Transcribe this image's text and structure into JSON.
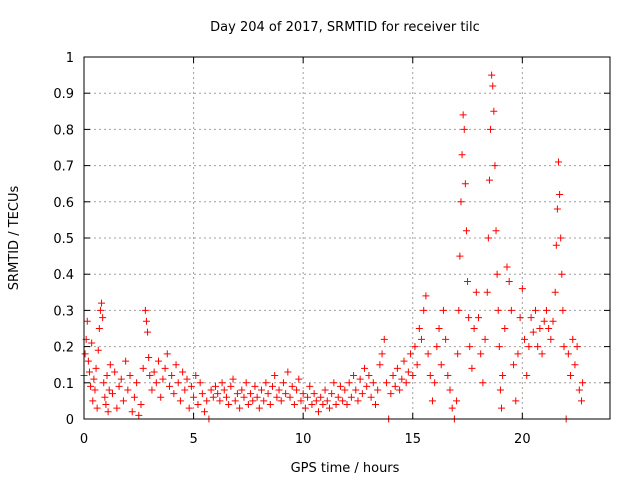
{
  "chart_data": {
    "type": "scatter",
    "title": "Day 204 of 2017, SRMTID for receiver tilc",
    "xlabel": "GPS time / hours",
    "ylabel": "SRMTID / TECUs",
    "xlim": [
      0,
      24
    ],
    "ylim": [
      0,
      1
    ],
    "x_ticks": [
      0,
      5,
      10,
      15,
      20
    ],
    "y_ticks": [
      0,
      0.1,
      0.2,
      0.3,
      0.4,
      0.5,
      0.6,
      0.7,
      0.8,
      0.9,
      1
    ],
    "grid": true,
    "marker": "+",
    "color": "#ff0000",
    "series": [
      {
        "name": "SRMTID",
        "points": [
          [
            0.0,
            0.12
          ],
          [
            0.05,
            0.18
          ],
          [
            0.1,
            0.22
          ],
          [
            0.15,
            0.27
          ],
          [
            0.2,
            0.16
          ],
          [
            0.25,
            0.13
          ],
          [
            0.3,
            0.09
          ],
          [
            0.35,
            0.21
          ],
          [
            0.4,
            0.05
          ],
          [
            0.45,
            0.11
          ],
          [
            0.5,
            0.08
          ],
          [
            0.55,
            0.14
          ],
          [
            0.6,
            0.03
          ],
          [
            0.65,
            0.19
          ],
          [
            0.7,
            0.25
          ],
          [
            0.75,
            0.3
          ],
          [
            0.8,
            0.32
          ],
          [
            0.85,
            0.28
          ],
          [
            0.9,
            0.1
          ],
          [
            0.95,
            0.06
          ],
          [
            1.0,
            0.04
          ],
          [
            1.05,
            0.12
          ],
          [
            1.1,
            0.02
          ],
          [
            1.15,
            0.08
          ],
          [
            1.2,
            0.15
          ],
          [
            1.3,
            0.07
          ],
          [
            1.4,
            0.13
          ],
          [
            1.5,
            0.03
          ],
          [
            1.6,
            0.09
          ],
          [
            1.7,
            0.11
          ],
          [
            1.8,
            0.05
          ],
          [
            1.9,
            0.16
          ],
          [
            2.0,
            0.08
          ],
          [
            2.1,
            0.12
          ],
          [
            2.2,
            0.02
          ],
          [
            2.3,
            0.06
          ],
          [
            2.4,
            0.1
          ],
          [
            2.5,
            0.01
          ],
          [
            2.6,
            0.04
          ],
          [
            2.7,
            0.14
          ],
          [
            2.8,
            0.3
          ],
          [
            2.85,
            0.27
          ],
          [
            2.9,
            0.24
          ],
          [
            2.95,
            0.17
          ],
          [
            3.0,
            0.12
          ],
          [
            3.1,
            0.08
          ],
          [
            3.2,
            0.13
          ],
          [
            3.3,
            0.1
          ],
          [
            3.4,
            0.16
          ],
          [
            3.5,
            0.06
          ],
          [
            3.6,
            0.11
          ],
          [
            3.7,
            0.14
          ],
          [
            3.8,
            0.18
          ],
          [
            3.9,
            0.09
          ],
          [
            4.0,
            0.12
          ],
          [
            4.1,
            0.07
          ],
          [
            4.2,
            0.15
          ],
          [
            4.3,
            0.1
          ],
          [
            4.4,
            0.05
          ],
          [
            4.5,
            0.13
          ],
          [
            4.6,
            0.08
          ],
          [
            4.7,
            0.11
          ],
          [
            4.8,
            0.03
          ],
          [
            4.9,
            0.09
          ],
          [
            5.0,
            0.06
          ],
          [
            5.1,
            0.12
          ],
          [
            5.2,
            0.04
          ],
          [
            5.3,
            0.1
          ],
          [
            5.4,
            0.07
          ],
          [
            5.5,
            0.02
          ],
          [
            5.6,
            0.05
          ],
          [
            5.7,
            0.0
          ],
          [
            5.8,
            0.08
          ],
          [
            5.9,
            0.06
          ],
          [
            6.0,
            0.09
          ],
          [
            6.1,
            0.07
          ],
          [
            6.2,
            0.05
          ],
          [
            6.3,
            0.1
          ],
          [
            6.4,
            0.08
          ],
          [
            6.5,
            0.06
          ],
          [
            6.6,
            0.04
          ],
          [
            6.7,
            0.09
          ],
          [
            6.8,
            0.11
          ],
          [
            6.9,
            0.05
          ],
          [
            7.0,
            0.07
          ],
          [
            7.1,
            0.03
          ],
          [
            7.2,
            0.08
          ],
          [
            7.3,
            0.06
          ],
          [
            7.4,
            0.1
          ],
          [
            7.5,
            0.04
          ],
          [
            7.6,
            0.07
          ],
          [
            7.7,
            0.05
          ],
          [
            7.8,
            0.09
          ],
          [
            7.9,
            0.06
          ],
          [
            8.0,
            0.03
          ],
          [
            8.1,
            0.08
          ],
          [
            8.2,
            0.05
          ],
          [
            8.3,
            0.1
          ],
          [
            8.4,
            0.07
          ],
          [
            8.5,
            0.04
          ],
          [
            8.6,
            0.09
          ],
          [
            8.7,
            0.12
          ],
          [
            8.8,
            0.06
          ],
          [
            8.9,
            0.08
          ],
          [
            9.0,
            0.05
          ],
          [
            9.1,
            0.1
          ],
          [
            9.2,
            0.07
          ],
          [
            9.3,
            0.13
          ],
          [
            9.4,
            0.06
          ],
          [
            9.5,
            0.09
          ],
          [
            9.6,
            0.04
          ],
          [
            9.7,
            0.08
          ],
          [
            9.8,
            0.11
          ],
          [
            9.9,
            0.05
          ],
          [
            10.0,
            0.07
          ],
          [
            10.1,
            0.03
          ],
          [
            10.2,
            0.06
          ],
          [
            10.3,
            0.09
          ],
          [
            10.4,
            0.04
          ],
          [
            10.5,
            0.07
          ],
          [
            10.6,
            0.05
          ],
          [
            10.7,
            0.02
          ],
          [
            10.8,
            0.06
          ],
          [
            10.9,
            0.04
          ],
          [
            11.0,
            0.08
          ],
          [
            11.1,
            0.05
          ],
          [
            11.2,
            0.03
          ],
          [
            11.3,
            0.07
          ],
          [
            11.4,
            0.1
          ],
          [
            11.5,
            0.04
          ],
          [
            11.6,
            0.06
          ],
          [
            11.7,
            0.09
          ],
          [
            11.8,
            0.05
          ],
          [
            11.9,
            0.08
          ],
          [
            12.0,
            0.04
          ],
          [
            12.1,
            0.1
          ],
          [
            12.2,
            0.06
          ],
          [
            12.3,
            0.12
          ],
          [
            12.4,
            0.08
          ],
          [
            12.5,
            0.05
          ],
          [
            12.6,
            0.11
          ],
          [
            12.7,
            0.07
          ],
          [
            12.8,
            0.14
          ],
          [
            12.9,
            0.09
          ],
          [
            13.0,
            0.12
          ],
          [
            13.1,
            0.06
          ],
          [
            13.2,
            0.1
          ],
          [
            13.3,
            0.04
          ],
          [
            13.4,
            0.08
          ],
          [
            13.5,
            0.15
          ],
          [
            13.6,
            0.18
          ],
          [
            13.7,
            0.22
          ],
          [
            13.8,
            0.1
          ],
          [
            13.9,
            0.0
          ],
          [
            14.0,
            0.07
          ],
          [
            14.1,
            0.12
          ],
          [
            14.2,
            0.09
          ],
          [
            14.3,
            0.14
          ],
          [
            14.4,
            0.08
          ],
          [
            14.5,
            0.11
          ],
          [
            14.6,
            0.16
          ],
          [
            14.7,
            0.1
          ],
          [
            14.8,
            0.13
          ],
          [
            14.9,
            0.18
          ],
          [
            15.0,
            0.12
          ],
          [
            15.1,
            0.2
          ],
          [
            15.2,
            0.15
          ],
          [
            15.3,
            0.25
          ],
          [
            15.4,
            0.22
          ],
          [
            15.5,
            0.3
          ],
          [
            15.6,
            0.34
          ],
          [
            15.7,
            0.18
          ],
          [
            15.8,
            0.12
          ],
          [
            15.9,
            0.05
          ],
          [
            16.0,
            0.1
          ],
          [
            16.1,
            0.2
          ],
          [
            16.2,
            0.25
          ],
          [
            16.3,
            0.15
          ],
          [
            16.4,
            0.3
          ],
          [
            16.5,
            0.22
          ],
          [
            16.6,
            0.12
          ],
          [
            16.7,
            0.08
          ],
          [
            16.8,
            0.03
          ],
          [
            16.9,
            0.0
          ],
          [
            17.0,
            0.05
          ],
          [
            17.05,
            0.18
          ],
          [
            17.1,
            0.3
          ],
          [
            17.15,
            0.45
          ],
          [
            17.2,
            0.6
          ],
          [
            17.25,
            0.73
          ],
          [
            17.3,
            0.84
          ],
          [
            17.35,
            0.8
          ],
          [
            17.4,
            0.65
          ],
          [
            17.45,
            0.52
          ],
          [
            17.5,
            0.38
          ],
          [
            17.55,
            0.28
          ],
          [
            17.6,
            0.2
          ],
          [
            17.7,
            0.14
          ],
          [
            17.8,
            0.25
          ],
          [
            17.9,
            0.35
          ],
          [
            18.0,
            0.28
          ],
          [
            18.1,
            0.18
          ],
          [
            18.2,
            0.1
          ],
          [
            18.3,
            0.22
          ],
          [
            18.4,
            0.35
          ],
          [
            18.45,
            0.5
          ],
          [
            18.5,
            0.66
          ],
          [
            18.55,
            0.8
          ],
          [
            18.6,
            0.95
          ],
          [
            18.65,
            0.92
          ],
          [
            18.7,
            0.85
          ],
          [
            18.75,
            0.7
          ],
          [
            18.8,
            0.52
          ],
          [
            18.85,
            0.4
          ],
          [
            18.9,
            0.3
          ],
          [
            18.95,
            0.2
          ],
          [
            19.0,
            0.08
          ],
          [
            19.05,
            0.03
          ],
          [
            19.1,
            0.12
          ],
          [
            19.2,
            0.25
          ],
          [
            19.3,
            0.42
          ],
          [
            19.4,
            0.38
          ],
          [
            19.5,
            0.3
          ],
          [
            19.6,
            0.15
          ],
          [
            19.7,
            0.05
          ],
          [
            19.8,
            0.18
          ],
          [
            19.9,
            0.28
          ],
          [
            20.0,
            0.36
          ],
          [
            20.1,
            0.22
          ],
          [
            20.2,
            0.12
          ],
          [
            20.3,
            0.2
          ],
          [
            20.4,
            0.28
          ],
          [
            20.5,
            0.24
          ],
          [
            20.6,
            0.3
          ],
          [
            20.7,
            0.2
          ],
          [
            20.8,
            0.25
          ],
          [
            20.9,
            0.18
          ],
          [
            21.0,
            0.27
          ],
          [
            21.1,
            0.3
          ],
          [
            21.2,
            0.25
          ],
          [
            21.3,
            0.22
          ],
          [
            21.4,
            0.27
          ],
          [
            21.5,
            0.35
          ],
          [
            21.55,
            0.48
          ],
          [
            21.6,
            0.58
          ],
          [
            21.65,
            0.71
          ],
          [
            21.7,
            0.62
          ],
          [
            21.75,
            0.5
          ],
          [
            21.8,
            0.4
          ],
          [
            21.85,
            0.3
          ],
          [
            21.9,
            0.2
          ],
          [
            22.0,
            0.0
          ],
          [
            22.1,
            0.18
          ],
          [
            22.2,
            0.12
          ],
          [
            22.3,
            0.22
          ],
          [
            22.4,
            0.15
          ],
          [
            22.5,
            0.2
          ],
          [
            22.6,
            0.08
          ],
          [
            22.7,
            0.05
          ],
          [
            22.75,
            0.1
          ]
        ]
      }
    ]
  }
}
